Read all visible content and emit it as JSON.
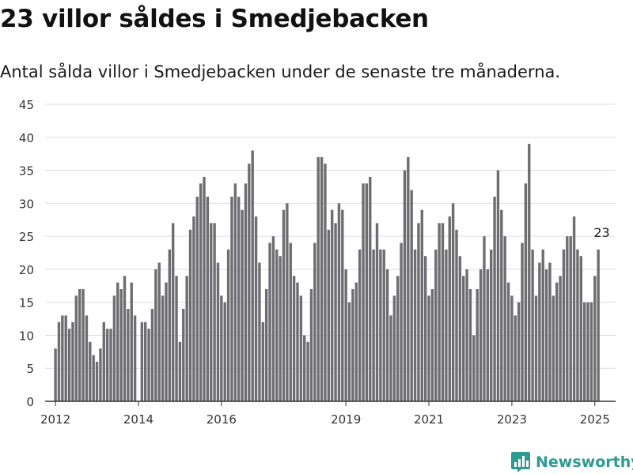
{
  "header": {
    "title": "23 villor såldes i Smedjebacken",
    "subtitle": "Antal sålda villor i Smedjebacken under de senaste tre månaderna."
  },
  "brand": {
    "name": "Newsworthy",
    "icon": "newsworthy-logo-icon",
    "color": "#2e9a93"
  },
  "colors": {
    "bar": "#6e6d72",
    "highlight": "#13958c",
    "grid": "#dedede",
    "axis": "#333333"
  },
  "chart_data": {
    "type": "bar",
    "title": "23 villor såldes i Smedjebacken",
    "subtitle": "Antal sålda villor i Smedjebacken under de senaste tre månaderna.",
    "ylim": [
      0,
      45
    ],
    "yticks": [
      0,
      5,
      10,
      15,
      20,
      25,
      30,
      35,
      40,
      45
    ],
    "xlim": [
      "2011-10",
      "2025-07"
    ],
    "xticks": [
      {
        "label": "2012",
        "date": "2012-01"
      },
      {
        "label": "2014",
        "date": "2014-01"
      },
      {
        "label": "2016",
        "date": "2016-01"
      },
      {
        "label": "2019",
        "date": "2019-01"
      },
      {
        "label": "2021",
        "date": "2021-01"
      },
      {
        "label": "2023",
        "date": "2023-01"
      },
      {
        "label": "2025",
        "date": "2025-01"
      }
    ],
    "grid": true,
    "series": [
      {
        "start": "2012-01",
        "frequency": "monthly",
        "values": [
          8,
          12,
          13,
          13,
          11,
          12,
          16,
          17,
          17,
          13,
          9,
          7,
          6,
          8,
          12,
          11,
          11,
          16,
          18,
          17,
          19,
          14,
          18,
          13,
          null,
          12,
          12,
          11,
          14,
          20,
          21,
          16,
          18,
          23,
          27,
          19,
          9,
          14,
          19,
          26,
          28,
          31,
          33,
          34,
          31,
          27,
          27,
          21,
          16,
          15,
          23,
          31,
          33,
          31,
          29,
          33,
          36,
          38,
          28,
          21,
          12,
          17,
          24,
          25,
          23,
          22,
          29,
          30,
          24,
          19,
          18,
          16,
          10,
          9,
          17,
          24,
          37,
          37,
          36,
          26,
          29,
          27,
          30,
          29,
          20,
          15,
          17,
          18,
          23,
          33,
          33,
          34,
          23,
          27,
          23,
          23,
          20,
          13,
          16,
          19,
          24,
          35,
          37,
          32,
          23,
          27,
          29,
          22,
          16,
          17,
          23,
          27,
          27,
          23,
          28,
          30,
          26,
          22,
          19,
          20,
          17,
          10,
          17,
          20,
          25,
          20,
          23,
          31,
          35,
          29,
          25,
          18,
          16,
          13,
          15,
          24,
          33,
          39,
          23,
          16,
          21,
          23,
          20,
          21,
          16,
          18,
          19,
          23,
          25,
          25,
          28,
          23,
          22,
          15,
          15,
          15,
          19,
          23
        ]
      }
    ],
    "annotations": [
      {
        "date": "2025-03",
        "value": 23,
        "text": "23"
      }
    ]
  }
}
